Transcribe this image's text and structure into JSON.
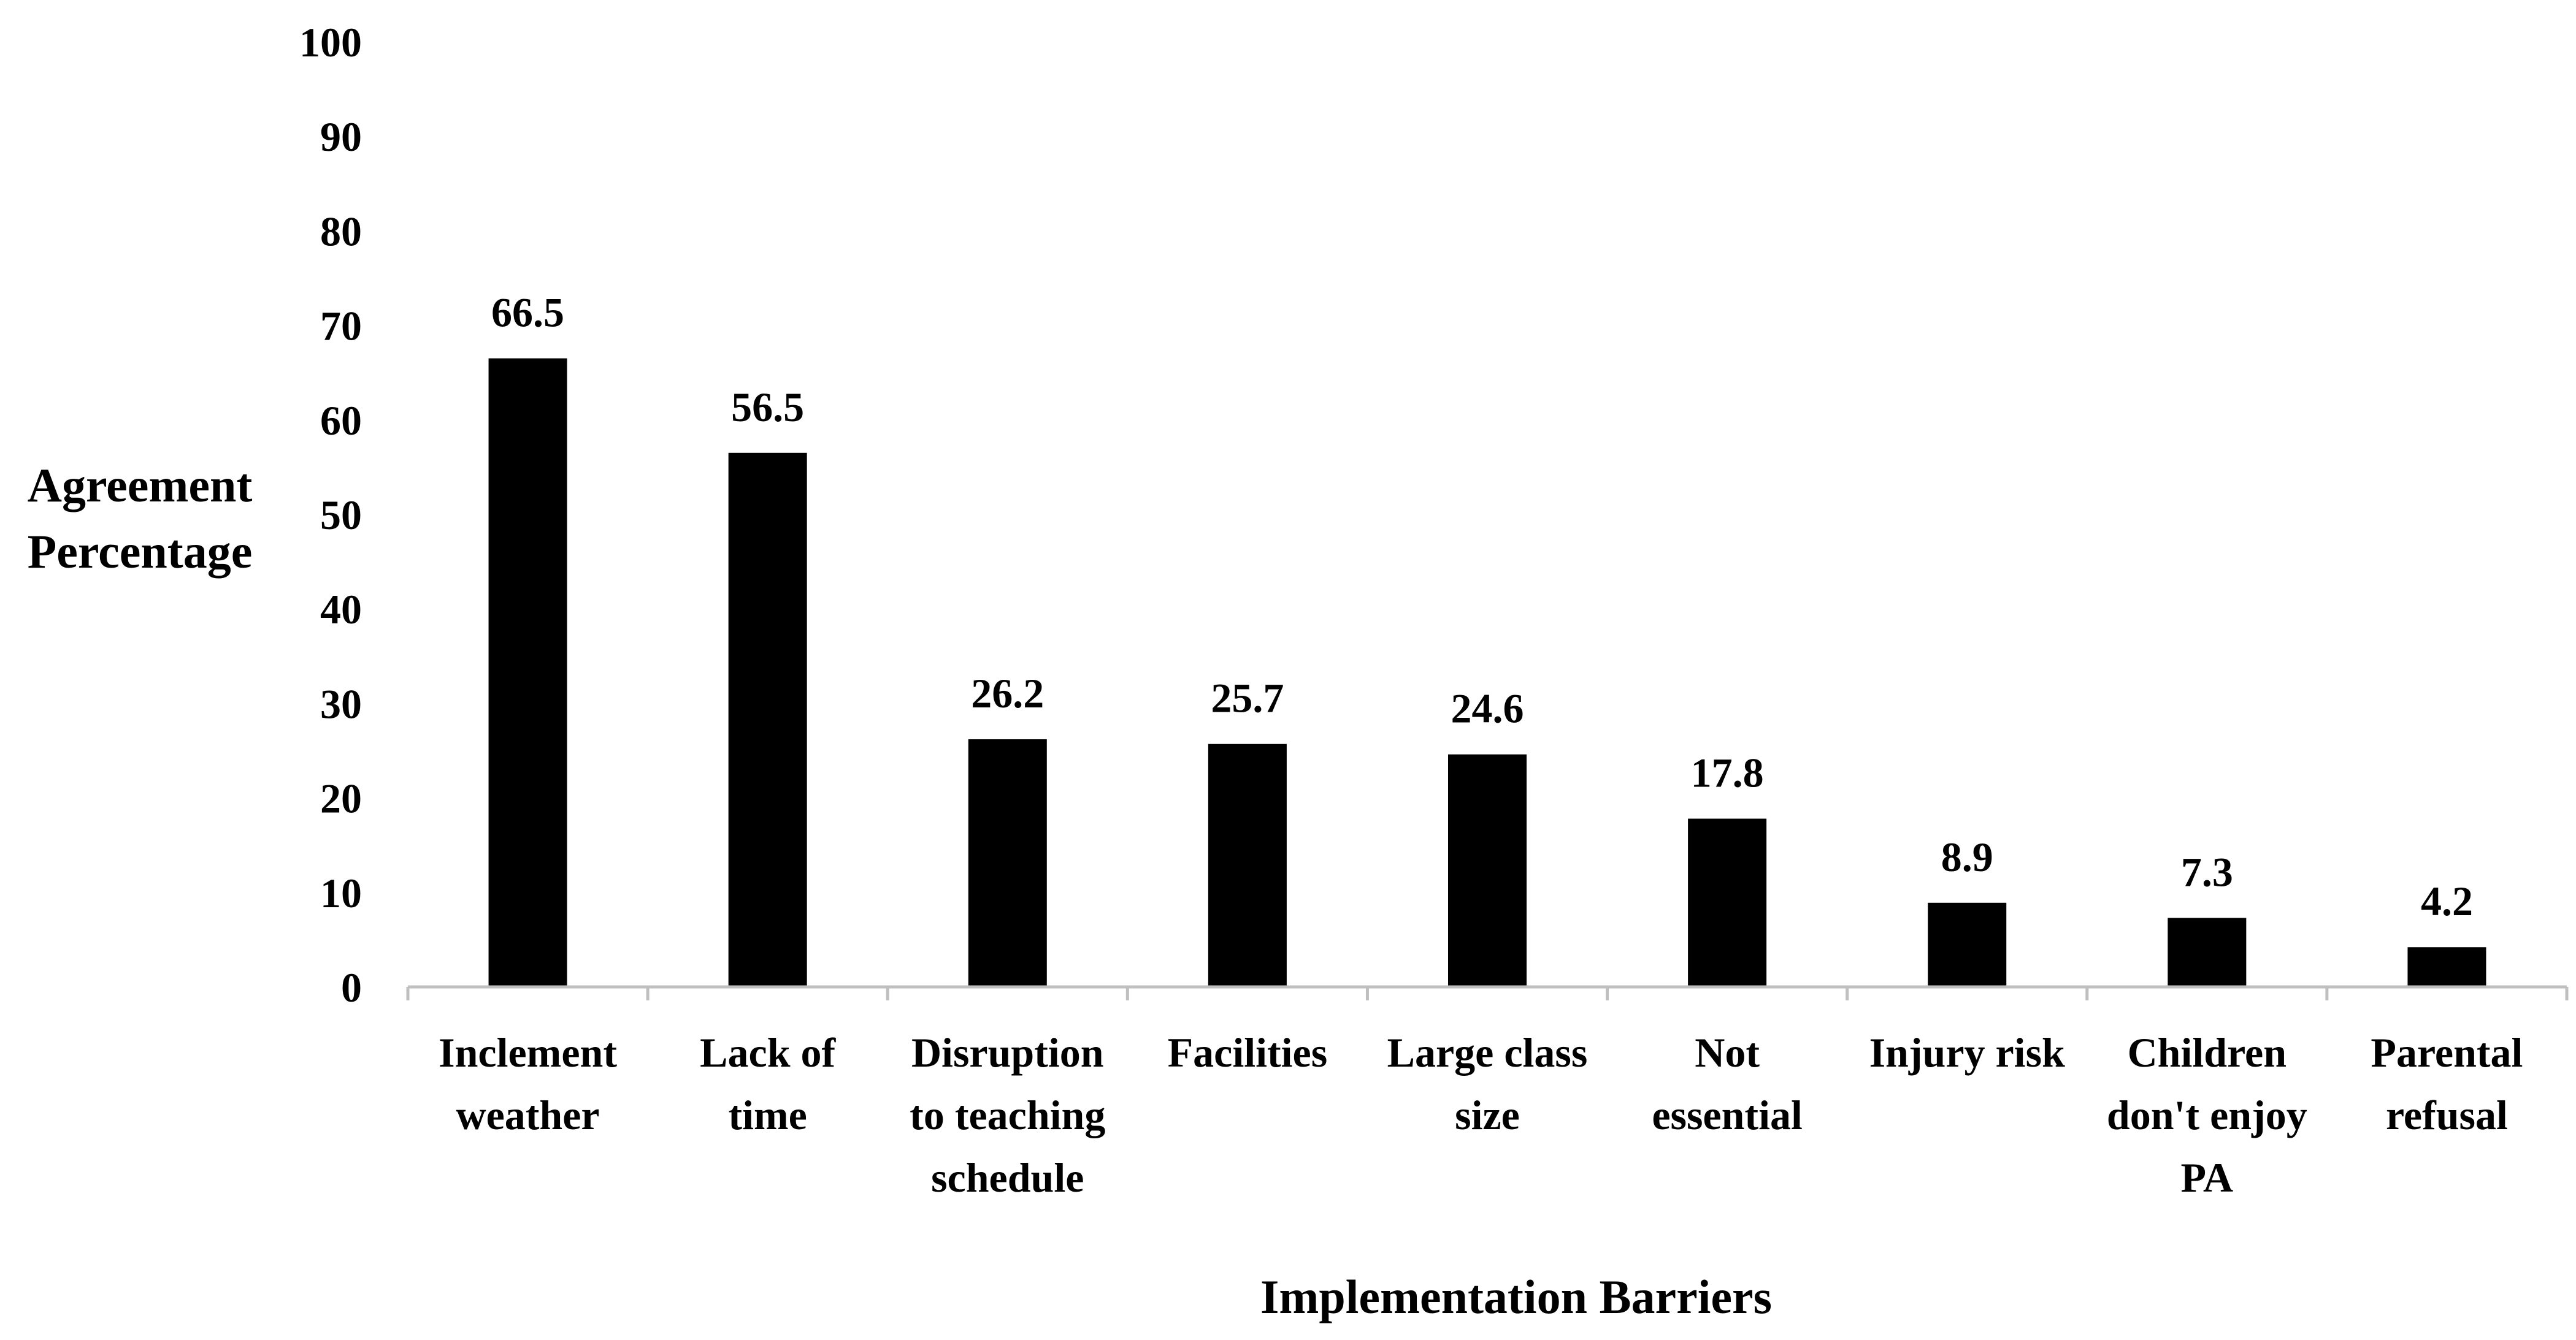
{
  "chart_data": {
    "type": "bar",
    "title": "",
    "xlabel": "Implementation Barriers",
    "ylabel": [
      "Agreement",
      "Percentage"
    ],
    "ylim": [
      0,
      100
    ],
    "yticks": [
      0,
      10,
      20,
      30,
      40,
      50,
      60,
      70,
      80,
      90,
      100
    ],
    "grid": false,
    "legend": false,
    "bar_color": "#000000",
    "axis_color": "#bfbfbf",
    "categories": [
      [
        "Inclement",
        "weather"
      ],
      [
        "Lack of",
        "time"
      ],
      [
        "Disruption",
        "to teaching",
        "schedule"
      ],
      [
        "Facilities"
      ],
      [
        "Large class",
        "size"
      ],
      [
        "Not",
        "essential"
      ],
      [
        "Injury risk"
      ],
      [
        "Children",
        "don't enjoy",
        "PA"
      ],
      [
        "Parental",
        "refusal"
      ]
    ],
    "values": [
      66.5,
      56.5,
      26.2,
      25.7,
      24.6,
      17.8,
      8.9,
      7.3,
      4.2
    ],
    "value_labels": [
      "66.5",
      "56.5",
      "26.2",
      "25.7",
      "24.6",
      "17.8",
      "8.9",
      "7.3",
      "4.2"
    ]
  }
}
